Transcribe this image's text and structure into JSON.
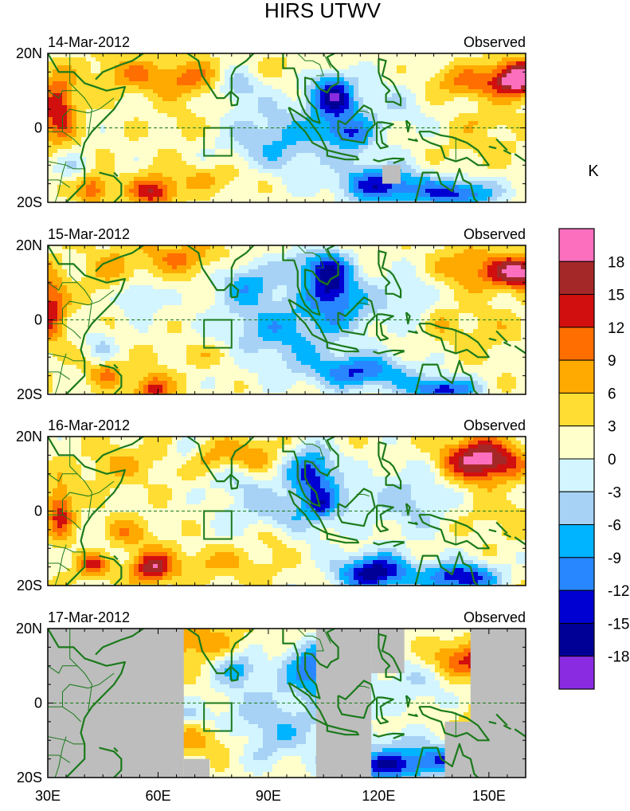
{
  "chart_data": {
    "type": "heatmap",
    "title": "HIRS UTWV",
    "units": "K",
    "x_ticks": [
      "30E",
      "60E",
      "90E",
      "120E",
      "150E"
    ],
    "x_tick_values": [
      30,
      60,
      90,
      120,
      150
    ],
    "y_ticks": [
      "20N",
      "0",
      "20S"
    ],
    "y_tick_values": [
      20,
      0,
      -20
    ],
    "xlim": [
      30,
      160
    ],
    "ylim": [
      -20,
      20
    ],
    "colorbar": {
      "levels": [
        "18",
        "15",
        "12",
        "9",
        "6",
        "3",
        "0",
        "-3",
        "-6",
        "-9",
        "-12",
        "-15",
        "-18"
      ],
      "colors": [
        "#fb6fbe",
        "#a52828",
        "#d20f0f",
        "#ff6e00",
        "#ffaa00",
        "#ffdd33",
        "#ffffcc",
        "#d2f5ff",
        "#a7d2f5",
        "#00b4ff",
        "#2887ff",
        "#0000d2",
        "#000096",
        "#8a2be2"
      ]
    },
    "panels": [
      {
        "date": "14-Mar-2012",
        "label": "Observed",
        "seed": 11,
        "missing": [
          {
            "lon0": 121,
            "lon1": 126,
            "lat0": -15,
            "lat1": -10
          }
        ]
      },
      {
        "date": "15-Mar-2012",
        "label": "Observed",
        "seed": 23,
        "missing": []
      },
      {
        "date": "16-Mar-2012",
        "label": "Observed",
        "seed": 37,
        "missing": []
      },
      {
        "date": "17-Mar-2012",
        "label": "Observed",
        "seed": 53,
        "missing": [
          {
            "lon0": 30,
            "lon1": 67,
            "lat0": -20,
            "lat1": 20
          },
          {
            "lon0": 67,
            "lon1": 74,
            "lat0": -20,
            "lat1": -15
          },
          {
            "lon0": 103,
            "lon1": 118,
            "lat0": -20,
            "lat1": 20
          },
          {
            "lon0": 118,
            "lon1": 127,
            "lat0": 8,
            "lat1": 20
          },
          {
            "lon0": 145,
            "lon1": 160,
            "lat0": -20,
            "lat1": 20
          },
          {
            "lon0": 138,
            "lon1": 145,
            "lat0": -20,
            "lat1": -5
          }
        ]
      }
    ]
  }
}
